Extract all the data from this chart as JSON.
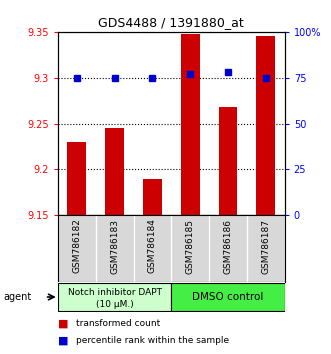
{
  "title": "GDS4488 / 1391880_at",
  "samples": [
    "GSM786182",
    "GSM786183",
    "GSM786184",
    "GSM786185",
    "GSM786186",
    "GSM786187"
  ],
  "bar_values": [
    9.23,
    9.245,
    9.19,
    9.348,
    9.268,
    9.345
  ],
  "percentile_values": [
    75,
    75,
    75,
    77,
    78,
    75
  ],
  "ylim_left": [
    9.15,
    9.35
  ],
  "ylim_right": [
    0,
    100
  ],
  "yticks_left": [
    9.15,
    9.2,
    9.25,
    9.3,
    9.35
  ],
  "ytick_labels_left": [
    "9.15",
    "9.2",
    "9.25",
    "9.3",
    "9.35"
  ],
  "yticks_right": [
    0,
    25,
    50,
    75,
    100
  ],
  "ytick_labels_right": [
    "0",
    "25",
    "50",
    "75",
    "100%"
  ],
  "bar_color": "#cc0000",
  "dot_color": "#0000cc",
  "group1_label_line1": "Notch inhibitor DAPT",
  "group1_label_line2": "(10 μM.)",
  "group2_label": "DMSO control",
  "group1_color": "#ccffcc",
  "group2_color": "#44ee44",
  "group1_samples": [
    0,
    1,
    2
  ],
  "group2_samples": [
    3,
    4,
    5
  ],
  "legend_bar_label": "transformed count",
  "legend_dot_label": "percentile rank within the sample",
  "agent_label": "agent"
}
